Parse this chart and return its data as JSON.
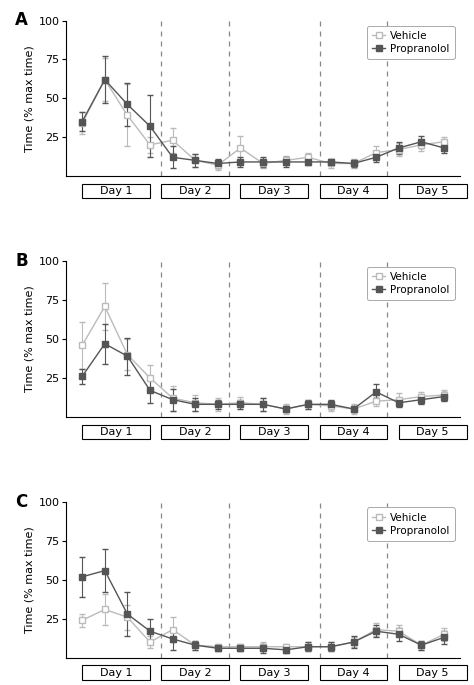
{
  "panel_labels": [
    "A",
    "B",
    "C"
  ],
  "ylabel": "Time (% max time)",
  "ylim": [
    0,
    100
  ],
  "yticks": [
    25,
    50,
    75,
    100
  ],
  "day_labels": [
    "Day 1",
    "Day 2",
    "Day 3",
    "Day 4",
    "Day 5"
  ],
  "vehicle_color": "#bbbbbb",
  "propranolol_color": "#555555",
  "vehicle_label": "Vehicle",
  "propranolol_label": "Propranolol",
  "day_boundaries": [
    3.5,
    6.5,
    10.5,
    13.5
  ],
  "day_centers": [
    1.5,
    5.0,
    8.5,
    12.0,
    15.5
  ],
  "n_points": 17,
  "panel_A": {
    "vehicle_y": [
      34,
      62,
      39,
      20,
      23,
      10,
      7,
      18,
      8,
      10,
      12,
      8,
      8,
      15,
      17,
      20,
      22
    ],
    "vehicle_err": [
      7,
      14,
      20,
      5,
      8,
      4,
      3,
      8,
      3,
      3,
      3,
      3,
      3,
      4,
      4,
      4,
      3
    ],
    "propranolol_y": [
      35,
      62,
      46,
      32,
      12,
      10,
      8,
      9,
      9,
      9,
      9,
      9,
      8,
      12,
      18,
      22,
      18
    ],
    "propranolol_err": [
      6,
      15,
      14,
      20,
      7,
      4,
      3,
      3,
      3,
      3,
      2,
      2,
      2,
      3,
      4,
      4,
      3
    ]
  },
  "panel_B": {
    "vehicle_y": [
      46,
      71,
      40,
      25,
      12,
      9,
      8,
      9,
      8,
      5,
      8,
      7,
      5,
      10,
      11,
      13,
      14
    ],
    "vehicle_err": [
      15,
      15,
      10,
      8,
      8,
      5,
      4,
      4,
      4,
      3,
      3,
      3,
      3,
      3,
      4,
      3,
      3
    ],
    "propranolol_y": [
      26,
      47,
      39,
      17,
      11,
      8,
      8,
      8,
      8,
      5,
      8,
      8,
      5,
      16,
      9,
      11,
      13
    ],
    "propranolol_err": [
      5,
      13,
      12,
      8,
      7,
      4,
      3,
      3,
      4,
      2,
      3,
      3,
      2,
      5,
      3,
      3,
      3
    ]
  },
  "panel_C": {
    "vehicle_y": [
      24,
      31,
      26,
      10,
      18,
      8,
      7,
      7,
      7,
      7,
      7,
      7,
      10,
      18,
      17,
      8,
      15
    ],
    "vehicle_err": [
      4,
      10,
      8,
      4,
      8,
      3,
      2,
      2,
      3,
      2,
      3,
      3,
      3,
      4,
      4,
      3,
      4
    ],
    "propranolol_y": [
      52,
      56,
      28,
      17,
      12,
      8,
      6,
      6,
      6,
      5,
      7,
      7,
      10,
      17,
      15,
      8,
      13
    ],
    "propranolol_err": [
      13,
      14,
      14,
      8,
      7,
      3,
      2,
      2,
      3,
      2,
      3,
      3,
      4,
      4,
      4,
      3,
      4
    ]
  }
}
